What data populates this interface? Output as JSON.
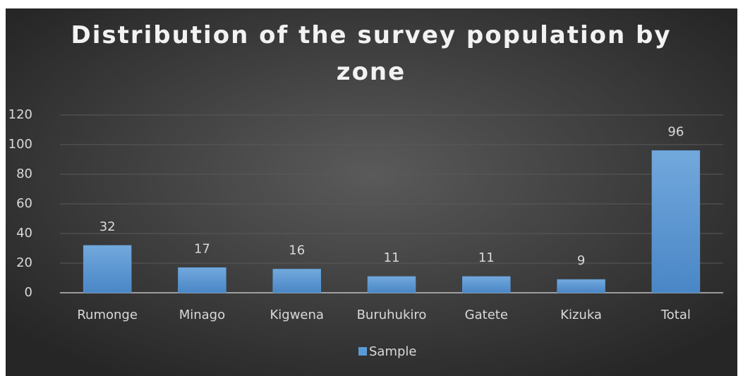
{
  "chart_data": {
    "type": "bar",
    "title": "Distribution of the survey population by zone",
    "categories": [
      "Rumonge",
      "Minago",
      "Kigwena",
      "Buruhukiro",
      "Gatete",
      "Kizuka",
      "Total"
    ],
    "series": [
      {
        "name": "Sample",
        "color": "#5b9bd5",
        "values": [
          32,
          17,
          16,
          11,
          11,
          9,
          96
        ]
      }
    ],
    "ylim": [
      0,
      120
    ],
    "yticks": [
      0,
      20,
      40,
      60,
      80,
      100,
      120
    ],
    "grid": true,
    "legend": "bottom"
  }
}
